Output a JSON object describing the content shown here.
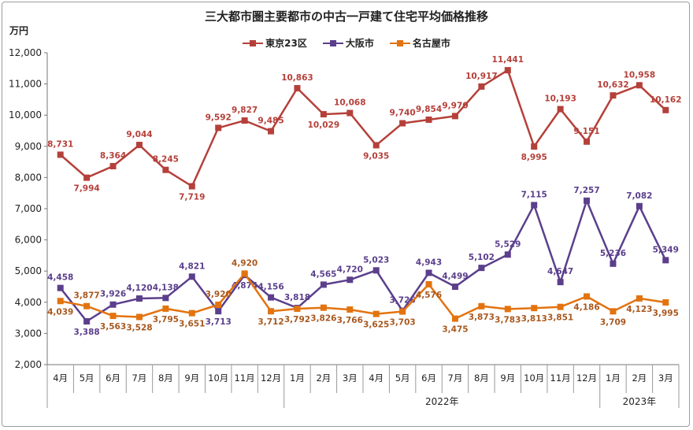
{
  "title": "三大都市圏主要都市の中古一戸建て住宅平均価格推移",
  "unit_label": "万円",
  "chart_data": {
    "type": "line",
    "title": "三大都市圏主要都市の中古一戸建て住宅平均価格推移",
    "ylabel": "万円",
    "ylim": [
      2000,
      12000
    ],
    "yticks": [
      "2,000",
      "3,000",
      "4,000",
      "5,000",
      "6,000",
      "7,000",
      "8,000",
      "9,000",
      "10,000",
      "11,000",
      "12,000"
    ],
    "categories": [
      "4月",
      "5月",
      "6月",
      "7月",
      "8月",
      "9月",
      "10月",
      "11月",
      "12月",
      "1月",
      "2月",
      "3月",
      "4月",
      "5月",
      "6月",
      "7月",
      "8月",
      "9月",
      "10月",
      "11月",
      "12月",
      "1月",
      "2月",
      "3月"
    ],
    "year_groups": [
      {
        "label": "",
        "start": 0,
        "end": 8
      },
      {
        "label": "2022年",
        "start": 9,
        "end": 20
      },
      {
        "label": "2023年",
        "start": 21,
        "end": 23
      }
    ],
    "legend_position": "top-center",
    "grid": false,
    "series": [
      {
        "name": "東京23区",
        "color": "#b5403a",
        "values": [
          8731,
          7994,
          8364,
          9044,
          8245,
          7719,
          9592,
          9827,
          9485,
          10863,
          10029,
          10068,
          9035,
          9740,
          9854,
          9970,
          10917,
          11441,
          8995,
          10193,
          9151,
          10632,
          10958,
          10162
        ],
        "labels": [
          "8,731",
          "7,994",
          "8,364",
          "9,044",
          "8,245",
          "7,719",
          "9,592",
          "9,827",
          "9,485",
          "10,863",
          "10,029",
          "10,068",
          "9,035",
          "9,740",
          "9,854",
          "9,970",
          "10,917",
          "11,441",
          "8,995",
          "10,193",
          "9,151",
          "10,632",
          "10,958",
          "10,162"
        ]
      },
      {
        "name": "大阪市",
        "color": "#5b3f8c",
        "values": [
          4458,
          3388,
          3926,
          4120,
          4138,
          4821,
          3713,
          4874,
          4156,
          3818,
          4565,
          4720,
          5023,
          3726,
          4943,
          4499,
          5102,
          5529,
          7115,
          4647,
          7257,
          5236,
          7082,
          5349
        ],
        "labels": [
          "4,458",
          "3,388",
          "3,926",
          "4,120",
          "4,138",
          "4,821",
          "3,713",
          "4,874",
          "4,156",
          "3,818",
          "4,565",
          "4,720",
          "5,023",
          "3,726",
          "4,943",
          "4,499",
          "5,102",
          "5,529",
          "7,115",
          "4,647",
          "7,257",
          "5,236",
          "7,082",
          "5,349"
        ]
      },
      {
        "name": "名古屋市",
        "color": "#e3730f",
        "label_color": "#a8581e",
        "values": [
          4039,
          3877,
          3563,
          3528,
          3795,
          3651,
          3920,
          4920,
          3712,
          3792,
          3826,
          3766,
          3625,
          3703,
          4576,
          3475,
          3873,
          3783,
          3813,
          3851,
          4186,
          3709,
          4123,
          3995
        ],
        "labels": [
          "4,039",
          "3,877",
          "3,563",
          "3,528",
          "3,795",
          "3,651",
          "3,920",
          "4,920",
          "3,712",
          "3,792",
          "3,826",
          "3,766",
          "3,625",
          "3,703",
          "4,576",
          "3,475",
          "3,873",
          "3,783",
          "3,813",
          "3,851",
          "4,186",
          "3,709",
          "4,123",
          "3,995"
        ]
      }
    ]
  }
}
